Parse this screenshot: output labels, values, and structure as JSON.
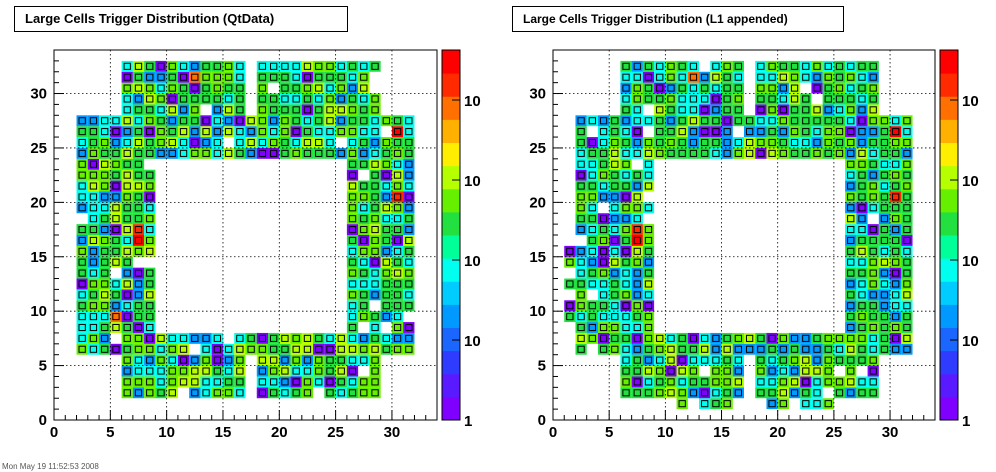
{
  "footer": {
    "stamp": "Mon May 19 11:52:53 2008"
  },
  "chart_data": [
    {
      "type": "heatmap",
      "title": "Large Cells Trigger Distribution (QtData)",
      "xlabel": "",
      "ylabel": "",
      "xlim": [
        0,
        34
      ],
      "ylim": [
        0,
        34
      ],
      "x_ticks": [
        0,
        5,
        10,
        15,
        20,
        25,
        30
      ],
      "y_ticks": [
        0,
        5,
        10,
        15,
        20,
        25,
        30
      ],
      "z_scale": "log",
      "zlim": [
        1,
        16
      ],
      "z_tick_labels": [
        "1",
        "10",
        "10",
        "10",
        "10"
      ],
      "grid": true,
      "hot_cells": [
        {
          "x": 12.5,
          "y": 31.5,
          "z": 12
        },
        {
          "x": 30.5,
          "y": 26.5,
          "z": 16
        },
        {
          "x": 30.5,
          "y": 20.5,
          "z": 13
        },
        {
          "x": 7.5,
          "y": 17.5,
          "z": 13
        },
        {
          "x": 7.5,
          "y": 16.5,
          "z": 16
        },
        {
          "x": 5.5,
          "y": 9.5,
          "z": 12
        }
      ]
    },
    {
      "type": "heatmap",
      "title": "Large Cells Trigger Distribution (L1 appended)",
      "xlabel": "",
      "ylabel": "",
      "xlim": [
        0,
        34
      ],
      "ylim": [
        0,
        34
      ],
      "x_ticks": [
        0,
        5,
        10,
        15,
        20,
        25,
        30
      ],
      "y_ticks": [
        0,
        5,
        10,
        15,
        20,
        25,
        30
      ],
      "z_scale": "log",
      "zlim": [
        1,
        16
      ],
      "z_tick_labels": [
        "1",
        "10",
        "10",
        "10",
        "10"
      ],
      "grid": true,
      "hot_cells": [
        {
          "x": 12.5,
          "y": 31.5,
          "z": 12
        },
        {
          "x": 30.5,
          "y": 26.5,
          "z": 16
        },
        {
          "x": 25.5,
          "y": 21.5,
          "z": 13
        },
        {
          "x": 30.5,
          "y": 20.5,
          "z": 13
        },
        {
          "x": 7.5,
          "y": 17.5,
          "z": 13
        },
        {
          "x": 7.5,
          "y": 16.5,
          "z": 16
        }
      ]
    }
  ]
}
